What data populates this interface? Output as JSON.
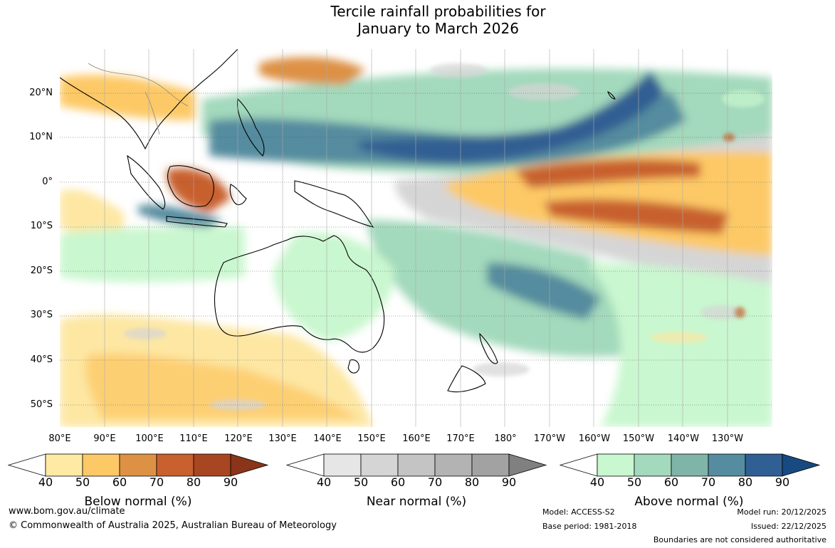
{
  "title": {
    "line1": "Tercile rainfall probabilities for",
    "line2": "January to March 2026"
  },
  "map": {
    "latitude_labels": [
      "20°N",
      "10°N",
      "0°",
      "10°S",
      "20°S",
      "30°S",
      "40°S",
      "50°S"
    ],
    "longitude_labels": [
      "80°E",
      "90°E",
      "100°E",
      "110°E",
      "120°E",
      "130°E",
      "140°E",
      "150°E",
      "160°E",
      "170°E",
      "180°",
      "170°W",
      "160°W",
      "150°W",
      "140°W",
      "130°W"
    ],
    "extent": {
      "lon_min": 80,
      "lon_max": 240,
      "lat_min": -55,
      "lat_max": 30
    },
    "dominant_signals": [
      {
        "region": "equatorial central Pacific",
        "category": "below",
        "level": "70-90"
      },
      {
        "region": "north-west Pacific / Philippine Sea",
        "category": "above",
        "level": "70-90"
      },
      {
        "region": "Coral Sea / south-west Pacific",
        "category": "above",
        "level": "60-80"
      },
      {
        "region": "southern Indian Ocean / Great Australian Bight",
        "category": "below",
        "level": "50-60"
      },
      {
        "region": "western Maritime Continent",
        "category": "below",
        "level": "70-90"
      }
    ]
  },
  "colorbars": [
    {
      "name": "below",
      "title": "Below normal (%)",
      "ticks": [
        "40",
        "50",
        "60",
        "70",
        "80",
        "90"
      ],
      "colors": [
        "#ffffff",
        "#ffeaa3",
        "#fdc966",
        "#dd9144",
        "#c8602f",
        "#a84621",
        "#8a3419"
      ]
    },
    {
      "name": "near",
      "title": "Near normal (%)",
      "ticks": [
        "40",
        "50",
        "60",
        "70",
        "80",
        "90"
      ],
      "colors": [
        "#ffffff",
        "#e6e6e6",
        "#d5d5d5",
        "#c4c4c4",
        "#b3b3b3",
        "#a2a2a2",
        "#808080"
      ]
    },
    {
      "name": "above",
      "title": "Above normal (%)",
      "ticks": [
        "40",
        "50",
        "60",
        "70",
        "80",
        "90"
      ],
      "colors": [
        "#ffffff",
        "#c9f7cf",
        "#a3d9bc",
        "#7fb5a9",
        "#558c9f",
        "#305f93",
        "#174a80"
      ]
    }
  ],
  "footer": {
    "website": "www.bom.gov.au/climate",
    "copyright": "© Commonwealth of Australia 2025, Australian Bureau of Meteorology",
    "model": "Model: ACCESS-S2",
    "base_period": "Base period: 1981-2018",
    "model_run": "Model run: 20/12/2025",
    "issued": "Issued: 22/12/2025",
    "disclaimer": "Boundaries are not considered authoritative"
  }
}
